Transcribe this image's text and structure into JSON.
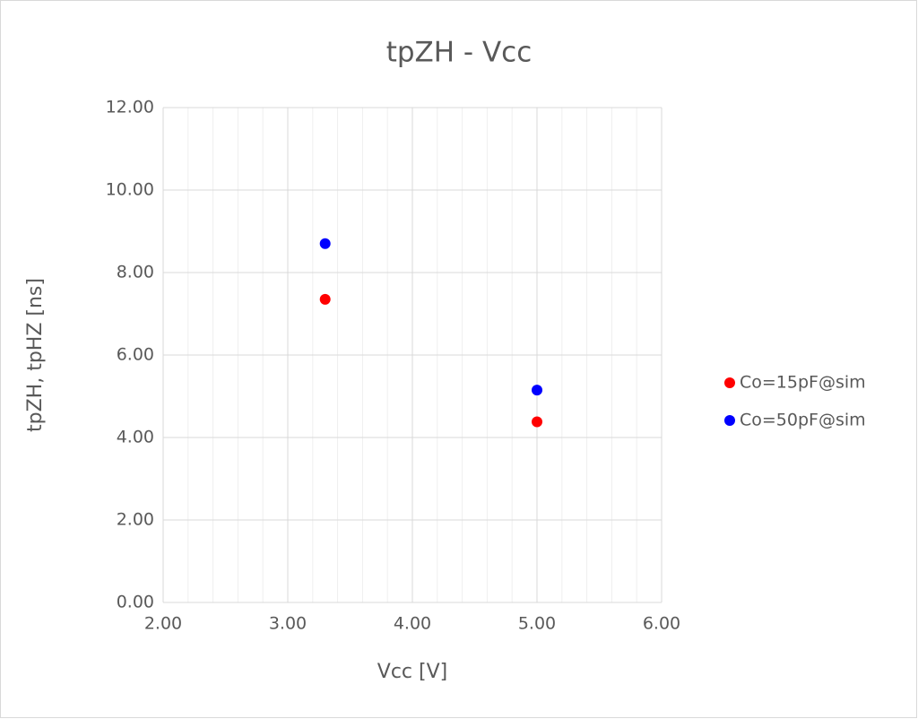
{
  "chart_data": {
    "type": "scatter",
    "title": "tpZH - Vcc",
    "x_label": "Vcc [V]",
    "y_label": "tpZH, tpHZ [ns]",
    "series": [
      {
        "name": "Co=15pF@sim",
        "color": "#ff0000",
        "x": [
          3.3,
          5.0
        ],
        "values": [
          7.35,
          4.38
        ]
      },
      {
        "name": "Co=50pF@sim",
        "color": "#0000ff",
        "x": [
          3.3,
          5.0
        ],
        "values": [
          8.7,
          5.15
        ]
      }
    ],
    "xlim": [
      2,
      6
    ],
    "xticks": [
      {
        "value": 2,
        "label": "2.00"
      },
      {
        "value": 3,
        "label": "3.00"
      },
      {
        "value": 4,
        "label": "4.00"
      },
      {
        "value": 5,
        "label": "5.00"
      },
      {
        "value": 6,
        "label": "6.00"
      }
    ],
    "ylim": [
      0,
      12
    ],
    "yticks": [
      {
        "value": 0,
        "label": "0.00"
      },
      {
        "value": 2,
        "label": "2.00"
      },
      {
        "value": 4,
        "label": "4.00"
      },
      {
        "value": 6,
        "label": "6.00"
      },
      {
        "value": 8,
        "label": "8.00"
      },
      {
        "value": 10,
        "label": "10.00"
      },
      {
        "value": 12,
        "label": "12.00"
      }
    ],
    "grid": true,
    "x_minor_grid": true,
    "legend": "right"
  }
}
